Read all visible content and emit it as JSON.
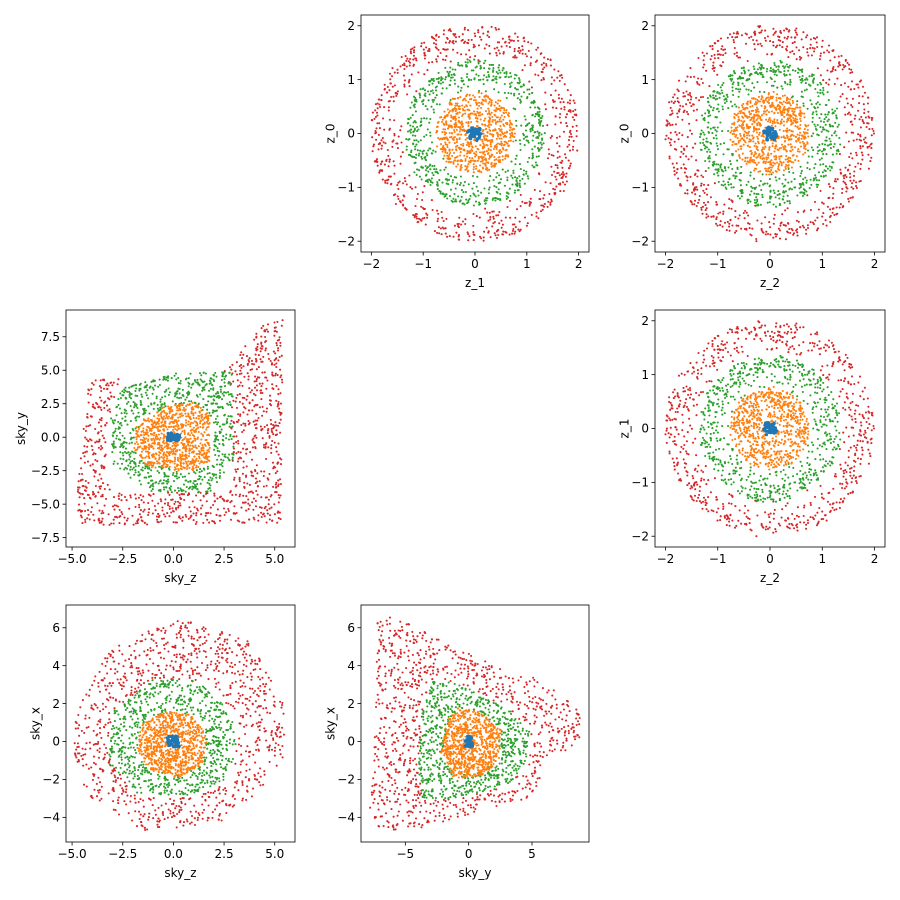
{
  "colors": {
    "c0": "#1f77b4",
    "c1": "#ff7f0e",
    "c2": "#2ca02c",
    "c3": "#d62728"
  },
  "chart_data": [
    {
      "type": "scatter",
      "xlabel": "z_1",
      "ylabel": "z_0",
      "xlim": [
        -2.2,
        2.2
      ],
      "ylim": [
        -2.2,
        2.2
      ],
      "xticks": [
        -2,
        -1,
        0,
        1,
        2
      ],
      "xticklabels": [
        "−2",
        "−1",
        "0",
        "1",
        "2"
      ],
      "yticks": [
        -2,
        -1,
        0,
        1,
        2
      ],
      "yticklabels": [
        "−2",
        "−1",
        "0",
        "1",
        "2"
      ],
      "shape": "circle",
      "center": [
        0,
        0
      ],
      "series": [
        {
          "color": "c3",
          "n": 700,
          "r_in": 1.35,
          "r_out": 2.0
        },
        {
          "color": "c2",
          "n": 650,
          "r_in": 0.75,
          "r_out": 1.35
        },
        {
          "color": "c1",
          "n": 700,
          "r_in": 0.05,
          "r_out": 0.75
        },
        {
          "color": "c0",
          "n": 50,
          "r_in": 0.0,
          "r_out": 0.12
        }
      ]
    },
    {
      "type": "scatter",
      "xlabel": "z_2",
      "ylabel": "z_0",
      "xlim": [
        -2.2,
        2.2
      ],
      "ylim": [
        -2.2,
        2.2
      ],
      "xticks": [
        -2,
        -1,
        0,
        1,
        2
      ],
      "xticklabels": [
        "−2",
        "−1",
        "0",
        "1",
        "2"
      ],
      "yticks": [
        -2,
        -1,
        0,
        1,
        2
      ],
      "yticklabels": [
        "−2",
        "−1",
        "0",
        "1",
        "2"
      ],
      "shape": "circle",
      "center": [
        0,
        0
      ],
      "series": [
        {
          "color": "c3",
          "n": 700,
          "r_in": 1.35,
          "r_out": 2.0
        },
        {
          "color": "c2",
          "n": 650,
          "r_in": 0.75,
          "r_out": 1.35
        },
        {
          "color": "c1",
          "n": 700,
          "r_in": 0.05,
          "r_out": 0.75
        },
        {
          "color": "c0",
          "n": 50,
          "r_in": 0.0,
          "r_out": 0.12
        }
      ]
    },
    {
      "type": "scatter",
      "xlabel": "sky_z",
      "ylabel": "sky_y",
      "xlim": [
        -5.3,
        6.0
      ],
      "ylim": [
        -8.2,
        9.5
      ],
      "xticks": [
        -5.0,
        -2.5,
        0.0,
        2.5,
        5.0
      ],
      "xticklabels": [
        "−5.0",
        "−2.5",
        "0.0",
        "2.5",
        "5.0"
      ],
      "yticks": [
        -7.5,
        -5.0,
        -2.5,
        0.0,
        2.5,
        5.0,
        7.5
      ],
      "yticklabels": [
        "−7.5",
        "−5.0",
        "−2.5",
        "0.0",
        "2.5",
        "5.0",
        "7.5"
      ],
      "shape": "polygon",
      "series": [
        {
          "color": "c3",
          "n": 900,
          "outer": [
            [
              -4.2,
              4.3
            ],
            [
              2.3,
              4.6
            ],
            [
              4.6,
              8.7
            ],
            [
              5.4,
              8.9
            ],
            [
              5.3,
              -6.4
            ],
            [
              -4.6,
              -6.6
            ],
            [
              -4.8,
              -5.0
            ]
          ],
          "inner": [
            [
              -2.6,
              4.4
            ],
            [
              2.7,
              4.7
            ],
            [
              3.0,
              -4.0
            ],
            [
              -2.9,
              -4.2
            ],
            [
              -3.4,
              -2.5
            ],
            [
              -3.2,
              1.2
            ]
          ]
        },
        {
          "color": "c2",
          "n": 700,
          "outer": [
            [
              -2.6,
              3.6
            ],
            [
              0.2,
              4.8
            ],
            [
              2.9,
              4.9
            ],
            [
              3.0,
              -1.5
            ],
            [
              1.8,
              -4.2
            ],
            [
              -1.0,
              -4.1
            ],
            [
              -3.0,
              -2.2
            ],
            [
              -3.1,
              1.6
            ]
          ],
          "inner": [
            [
              -1.5,
              1.6
            ],
            [
              0.6,
              2.5
            ],
            [
              2.0,
              1.5
            ],
            [
              2.0,
              -1.8
            ],
            [
              0.8,
              -2.6
            ],
            [
              -1.4,
              -2.0
            ],
            [
              -2.0,
              -0.4
            ]
          ]
        },
        {
          "color": "c1",
          "n": 800,
          "outer": [
            [
              -1.8,
              1.0
            ],
            [
              -0.6,
              2.2
            ],
            [
              1.0,
              2.7
            ],
            [
              1.8,
              1.6
            ],
            [
              1.8,
              -1.8
            ],
            [
              0.8,
              -2.6
            ],
            [
              -1.3,
              -2.2
            ],
            [
              -2.0,
              -0.8
            ]
          ]
        },
        {
          "color": "c0",
          "n": 50,
          "outer": [
            [
              -0.3,
              0.3
            ],
            [
              0.3,
              0.3
            ],
            [
              0.3,
              -0.3
            ],
            [
              -0.3,
              -0.3
            ]
          ]
        }
      ]
    },
    {
      "type": "scatter",
      "xlabel": "z_2",
      "ylabel": "z_1",
      "xlim": [
        -2.2,
        2.2
      ],
      "ylim": [
        -2.2,
        2.2
      ],
      "xticks": [
        -2,
        -1,
        0,
        1,
        2
      ],
      "xticklabels": [
        "−2",
        "−1",
        "0",
        "1",
        "2"
      ],
      "yticks": [
        -2,
        -1,
        0,
        1,
        2
      ],
      "yticklabels": [
        "−2",
        "−1",
        "0",
        "1",
        "2"
      ],
      "shape": "circle",
      "center": [
        0,
        0
      ],
      "series": [
        {
          "color": "c3",
          "n": 700,
          "r_in": 1.35,
          "r_out": 2.0
        },
        {
          "color": "c2",
          "n": 650,
          "r_in": 0.75,
          "r_out": 1.35
        },
        {
          "color": "c1",
          "n": 700,
          "r_in": 0.05,
          "r_out": 0.75
        },
        {
          "color": "c0",
          "n": 50,
          "r_in": 0.0,
          "r_out": 0.12
        }
      ]
    },
    {
      "type": "scatter",
      "xlabel": "sky_z",
      "ylabel": "sky_x",
      "xlim": [
        -5.3,
        6.0
      ],
      "ylim": [
        -5.3,
        7.2
      ],
      "xticks": [
        -5.0,
        -2.5,
        0.0,
        2.5,
        5.0
      ],
      "xticklabels": [
        "−5.0",
        "−2.5",
        "0.0",
        "2.5",
        "5.0"
      ],
      "yticks": [
        -4,
        -2,
        0,
        2,
        4,
        6
      ],
      "yticklabels": [
        "−4",
        "−2",
        "0",
        "2",
        "4",
        "6"
      ],
      "shape": "polygon",
      "series": [
        {
          "color": "c3",
          "n": 900,
          "outer": [
            [
              -4.8,
              1.5
            ],
            [
              -3.2,
              4.8
            ],
            [
              0.3,
              6.6
            ],
            [
              3.8,
              5.3
            ],
            [
              5.4,
              2.0
            ],
            [
              5.6,
              -0.8
            ],
            [
              4.5,
              -2.3
            ],
            [
              2.4,
              -4.3
            ],
            [
              -1.5,
              -4.7
            ],
            [
              -4.3,
              -2.8
            ],
            [
              -4.9,
              -0.5
            ]
          ],
          "inner": [
            [
              -3.0,
              1.6
            ],
            [
              -1.0,
              3.3
            ],
            [
              2.0,
              3.0
            ],
            [
              3.2,
              0.8
            ],
            [
              3.0,
              -2.0
            ],
            [
              1.0,
              -3.0
            ],
            [
              -2.0,
              -2.8
            ],
            [
              -3.2,
              -0.8
            ]
          ]
        },
        {
          "color": "c2",
          "n": 700,
          "outer": [
            [
              -3.0,
              1.6
            ],
            [
              -1.0,
              3.3
            ],
            [
              1.2,
              3.2
            ],
            [
              2.8,
              1.6
            ],
            [
              3.2,
              -0.4
            ],
            [
              2.6,
              -2.0
            ],
            [
              0.8,
              -2.9
            ],
            [
              -1.8,
              -2.7
            ],
            [
              -3.2,
              -1.2
            ]
          ],
          "inner": [
            [
              -1.6,
              0.8
            ],
            [
              -0.4,
              1.6
            ],
            [
              1.0,
              1.4
            ],
            [
              1.6,
              0.2
            ],
            [
              1.4,
              -1.2
            ],
            [
              0.2,
              -1.8
            ],
            [
              -1.2,
              -1.4
            ],
            [
              -1.8,
              -0.4
            ]
          ]
        },
        {
          "color": "c1",
          "n": 800,
          "outer": [
            [
              -1.6,
              0.9
            ],
            [
              -0.4,
              1.6
            ],
            [
              1.0,
              1.4
            ],
            [
              1.7,
              0.2
            ],
            [
              1.4,
              -1.2
            ],
            [
              0.3,
              -1.9
            ],
            [
              -1.2,
              -1.5
            ],
            [
              -1.8,
              -0.4
            ]
          ]
        },
        {
          "color": "c0",
          "n": 50,
          "outer": [
            [
              -0.3,
              0.3
            ],
            [
              0.3,
              0.3
            ],
            [
              0.3,
              -0.3
            ],
            [
              -0.3,
              -0.3
            ]
          ]
        }
      ]
    },
    {
      "type": "scatter",
      "xlabel": "sky_y",
      "ylabel": "sky_x",
      "xlim": [
        -8.5,
        9.5
      ],
      "ylim": [
        -5.3,
        7.2
      ],
      "xticks": [
        -5,
        0,
        5
      ],
      "xticklabels": [
        "−5",
        "0",
        "5"
      ],
      "yticks": [
        -4,
        -2,
        0,
        2,
        4,
        6
      ],
      "yticklabels": [
        "−4",
        "−2",
        "0",
        "2",
        "4",
        "6"
      ],
      "shape": "polygon",
      "series": [
        {
          "color": "c3",
          "n": 900,
          "outer": [
            [
              -7.2,
              6.4
            ],
            [
              -6.3,
              6.7
            ],
            [
              2.0,
              4.0
            ],
            [
              6.0,
              3.2
            ],
            [
              8.8,
              1.6
            ],
            [
              8.8,
              0.2
            ],
            [
              6.0,
              -1.8
            ],
            [
              4.8,
              -3.0
            ],
            [
              -4.0,
              -4.6
            ],
            [
              -7.0,
              -4.8
            ],
            [
              -7.8,
              -3.5
            ],
            [
              -7.5,
              -1.0
            ]
          ],
          "inner": [
            [
              -3.6,
              2.0
            ],
            [
              -2.8,
              3.2
            ],
            [
              -0.8,
              3.1
            ],
            [
              3.0,
              1.8
            ],
            [
              4.8,
              0.6
            ],
            [
              4.6,
              -1.0
            ],
            [
              3.0,
              -2.4
            ],
            [
              -1.4,
              -3.0
            ],
            [
              -3.6,
              -3.0
            ],
            [
              -4.0,
              -1.5
            ]
          ]
        },
        {
          "color": "c2",
          "n": 700,
          "outer": [
            [
              -3.6,
              2.0
            ],
            [
              -2.8,
              3.2
            ],
            [
              -1.0,
              3.1
            ],
            [
              3.0,
              1.8
            ],
            [
              4.8,
              0.6
            ],
            [
              4.6,
              -1.0
            ],
            [
              3.0,
              -2.4
            ],
            [
              -1.4,
              -3.0
            ],
            [
              -3.6,
              -3.0
            ],
            [
              -4.0,
              -1.5
            ]
          ],
          "inner": [
            [
              -1.6,
              1.0
            ],
            [
              -0.8,
              1.8
            ],
            [
              0.6,
              1.6
            ],
            [
              2.4,
              0.8
            ],
            [
              2.4,
              -0.8
            ],
            [
              1.2,
              -1.6
            ],
            [
              -1.0,
              -1.8
            ],
            [
              -2.0,
              -0.8
            ]
          ]
        },
        {
          "color": "c1",
          "n": 800,
          "outer": [
            [
              -1.8,
              1.0
            ],
            [
              -0.8,
              1.8
            ],
            [
              0.8,
              1.6
            ],
            [
              2.6,
              0.6
            ],
            [
              2.4,
              -1.0
            ],
            [
              1.0,
              -1.9
            ],
            [
              -1.2,
              -1.9
            ],
            [
              -2.2,
              -0.6
            ]
          ]
        },
        {
          "color": "c0",
          "n": 50,
          "outer": [
            [
              -0.3,
              0.3
            ],
            [
              0.3,
              0.3
            ],
            [
              0.3,
              -0.3
            ],
            [
              -0.3,
              -0.3
            ]
          ]
        }
      ]
    }
  ]
}
